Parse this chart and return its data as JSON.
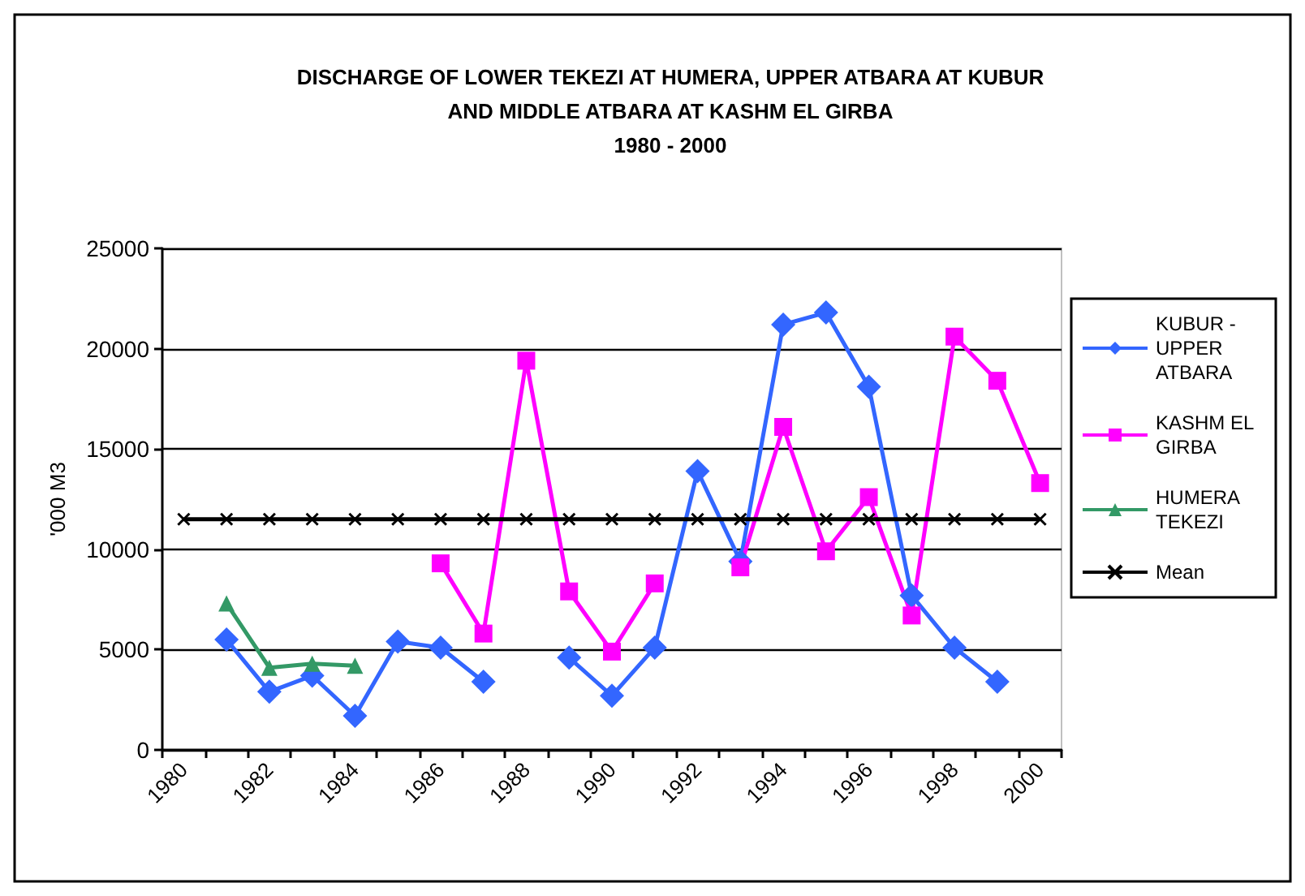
{
  "chart_data": {
    "type": "line",
    "title": "DISCHARGE OF LOWER TEKEZI AT HUMERA, UPPER ATBARA AT KUBUR\nAND MIDDLE ATBARA AT KASHM EL GIRBA\n1980 - 2000",
    "ylabel": "'000 M3",
    "categories": [
      "1980",
      null,
      "1982",
      null,
      "1984",
      null,
      "1986",
      null,
      "1988",
      null,
      "1990",
      null,
      "1992",
      null,
      "1994",
      null,
      "1996",
      null,
      "1998",
      null,
      "2000"
    ],
    "series": [
      {
        "name": "KUBUR - UPPER ATBARA",
        "color": "#3366ff",
        "marker": "diamond",
        "values": [
          null,
          5500,
          2900,
          3700,
          1700,
          5400,
          5100,
          3400,
          null,
          4600,
          2700,
          5100,
          13900,
          9400,
          21200,
          21800,
          18100,
          7700,
          5100,
          3400,
          null
        ]
      },
      {
        "name": "KASHM EL GIRBA",
        "color": "#ff00ff",
        "marker": "square",
        "values": [
          null,
          null,
          null,
          null,
          null,
          null,
          9300,
          5800,
          19400,
          7900,
          4900,
          8300,
          null,
          9100,
          16100,
          9900,
          12600,
          6700,
          20600,
          18400,
          13300
        ]
      },
      {
        "name": "HUMERA TEKEZI",
        "color": "#339966",
        "marker": "triangle",
        "values": [
          null,
          7300,
          4100,
          4300,
          4200,
          null,
          null,
          null,
          null,
          null,
          null,
          null,
          null,
          null,
          null,
          null,
          null,
          null,
          null,
          null,
          null
        ]
      },
      {
        "name": "Mean",
        "color": "#000000",
        "marker": "cross",
        "values": [
          11500,
          11500,
          11500,
          11500,
          11500,
          11500,
          11500,
          11500,
          11500,
          11500,
          11500,
          11500,
          11500,
          11500,
          11500,
          11500,
          11500,
          11500,
          11500,
          11500,
          11500
        ]
      }
    ],
    "ylim": [
      0,
      25000
    ],
    "yticks": [
      0,
      5000,
      10000,
      15000,
      20000,
      25000
    ],
    "grid": "y",
    "legend": "right"
  }
}
